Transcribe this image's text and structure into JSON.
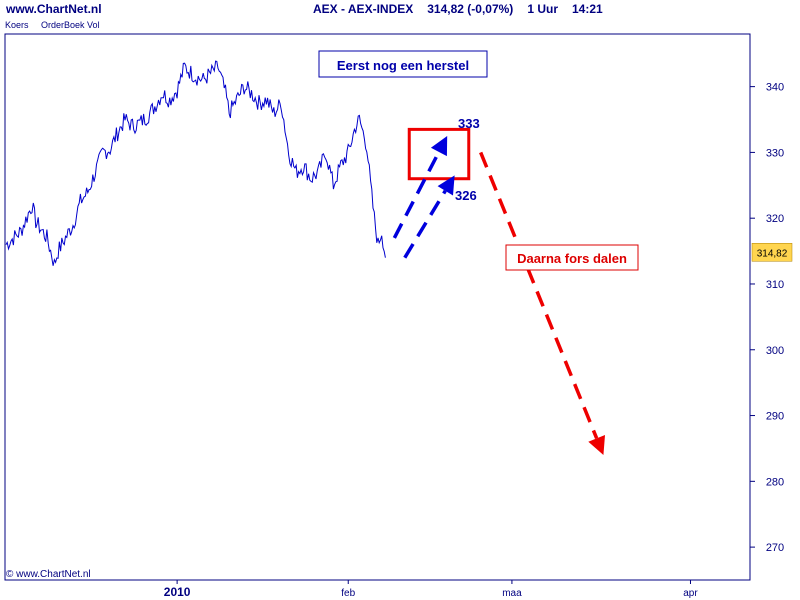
{
  "header": {
    "site": "www.ChartNet.nl",
    "instrument": "AEX - AEX-INDEX",
    "price_change": "314,82 (-0,07%)",
    "interval": "1 Uur",
    "time": "14:21"
  },
  "tabs": [
    "Koers",
    "OrderBoek Vol"
  ],
  "footer": {
    "copyright": "© www.ChartNet.nl"
  },
  "colors": {
    "series": "#0000cc",
    "frame": "#000080",
    "up_forecast": "#0000dd",
    "down_forecast": "#ee0000",
    "current_price_bg": "#ffd54f"
  },
  "chart_data": {
    "type": "line",
    "title": "AEX - AEX-INDEX",
    "ylim": [
      265,
      348
    ],
    "xlim": [
      0,
      100
    ],
    "y_ticks": [
      270,
      280,
      290,
      300,
      310,
      320,
      330,
      340
    ],
    "x_ticks": [
      {
        "pos": 23,
        "label": "2010",
        "bold": true
      },
      {
        "pos": 46,
        "label": "feb",
        "bold": false
      },
      {
        "pos": 68,
        "label": "maa",
        "bold": false
      },
      {
        "pos": 92,
        "label": "apr",
        "bold": false
      }
    ],
    "series": [
      {
        "values": [
          [
            0,
            316
          ],
          [
            2,
            318
          ],
          [
            3.5,
            322
          ],
          [
            4,
            319.5
          ],
          [
            5.5,
            317
          ],
          [
            6.5,
            313
          ],
          [
            7,
            315
          ],
          [
            8,
            317
          ],
          [
            9,
            319
          ],
          [
            10,
            322.5
          ],
          [
            11,
            324
          ],
          [
            12,
            327
          ],
          [
            13,
            330
          ],
          [
            14,
            330.5
          ],
          [
            15,
            333
          ],
          [
            16,
            335
          ],
          [
            17,
            334
          ],
          [
            18,
            334.5
          ],
          [
            19,
            335.5
          ],
          [
            20,
            337
          ],
          [
            21,
            339
          ],
          [
            22,
            338
          ],
          [
            23,
            339.5
          ],
          [
            24,
            343
          ],
          [
            25.5,
            341.5
          ],
          [
            26.5,
            341
          ],
          [
            27.5,
            342
          ],
          [
            28.5,
            343
          ],
          [
            29.5,
            339
          ],
          [
            30,
            336
          ],
          [
            31,
            338
          ],
          [
            32,
            340
          ],
          [
            33,
            339
          ],
          [
            34,
            337.5
          ],
          [
            35,
            338
          ],
          [
            36,
            336
          ],
          [
            37,
            337.5
          ],
          [
            38,
            330
          ],
          [
            39,
            327
          ],
          [
            40,
            328
          ],
          [
            41,
            326
          ],
          [
            42,
            327
          ],
          [
            43,
            330
          ],
          [
            44,
            325
          ],
          [
            45,
            328
          ],
          [
            46,
            330
          ],
          [
            47,
            334
          ],
          [
            47.5,
            335
          ],
          [
            48.5,
            331
          ],
          [
            49,
            325
          ],
          [
            49.5,
            320
          ],
          [
            50,
            316
          ],
          [
            50.5,
            318
          ],
          [
            51,
            314
          ]
        ]
      }
    ],
    "current_price": {
      "value": 314.82,
      "label": "314,82"
    },
    "annotations": [
      {
        "text": "Eerst nog een herstel",
        "color": "#0000aa"
      },
      {
        "text": "333",
        "color": "#0000aa"
      },
      {
        "text": "326",
        "color": "#0000aa"
      },
      {
        "text": "Daarna fors dalen",
        "color": "#dd0000"
      }
    ],
    "forecast": {
      "box_y": [
        326,
        333.5
      ],
      "box_x": [
        54.2,
        62.2
      ],
      "up_arrows": [
        {
          "from": [
            52.2,
            317
          ],
          "to": [
            59.3,
            332.5
          ]
        },
        {
          "from": [
            53.6,
            314
          ],
          "to": [
            60.3,
            326.5
          ]
        }
      ],
      "down_arrow": {
        "from": [
          63.8,
          330
        ],
        "to": [
          80.3,
          284
        ]
      }
    }
  }
}
